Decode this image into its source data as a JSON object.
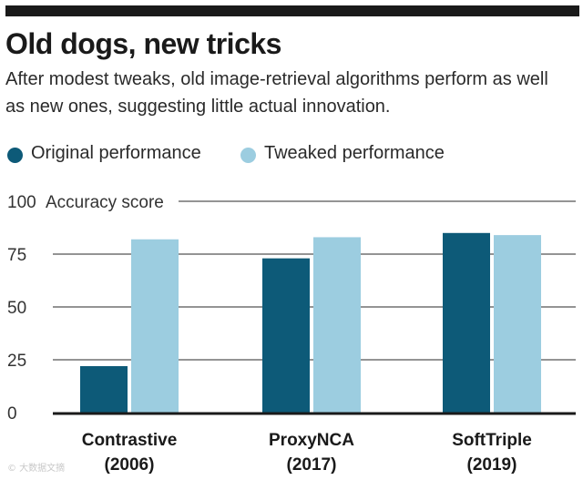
{
  "header": {
    "title": "Old dogs, new tricks",
    "subtitle": "After modest tweaks, old image-retrieval algorithms perform as well as new ones, suggesting little actual innovation."
  },
  "watermark": "© 大数据文摘",
  "colors": {
    "original": "#0d5a78",
    "tweaked": "#9ccde0",
    "grid": "#555555",
    "axis": "#1a1a1a"
  },
  "chart_data": {
    "type": "bar",
    "title": "Old dogs, new tricks",
    "ylabel": "Accuracy score",
    "xlabel": "",
    "ylim": [
      0,
      100
    ],
    "yticks": [
      "0",
      "25",
      "50",
      "75",
      "100"
    ],
    "grid": true,
    "legend_position": "top-left",
    "categories": [
      {
        "name": "Contrastive",
        "year": "(2006)"
      },
      {
        "name": "ProxyNCA",
        "year": "(2017)"
      },
      {
        "name": "SoftTriple",
        "year": "(2019)"
      }
    ],
    "series": [
      {
        "name": "Original performance",
        "values": [
          22,
          73,
          85
        ]
      },
      {
        "name": "Tweaked performance",
        "values": [
          82,
          83,
          84
        ]
      }
    ]
  }
}
